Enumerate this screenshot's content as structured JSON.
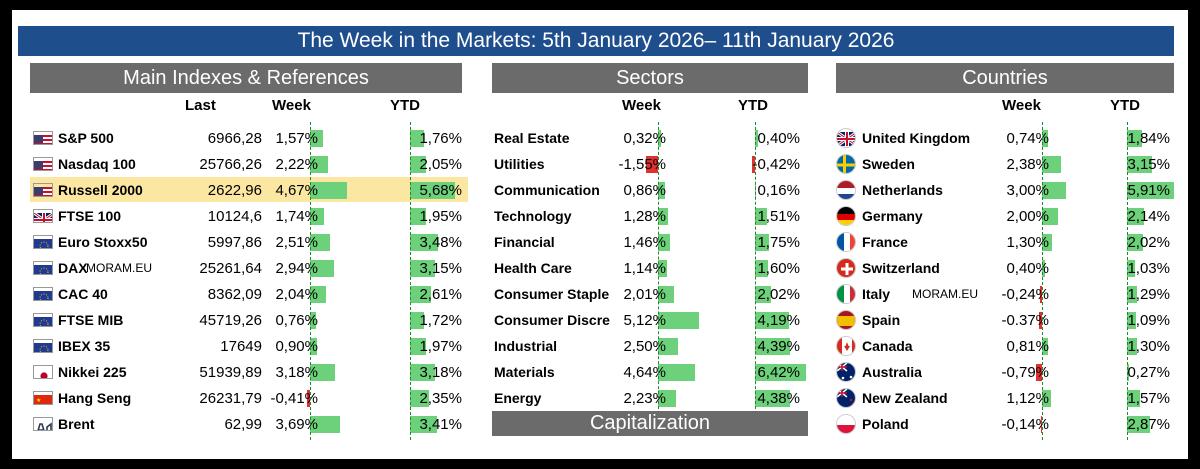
{
  "header": {
    "title": "The Week in the Markets: 5th January 2026– 11th January 2026"
  },
  "colors": {
    "title_bg": "#1f4e8c",
    "panel_bg": "#6b6b6b",
    "bar_green": "#6cd17a",
    "bar_red": "#e03030",
    "highlight": "#fbe7a1"
  },
  "indexes": {
    "title": "Main Indexes & References",
    "col_last": "Last",
    "col_week": "Week",
    "col_ytd": "YTD",
    "rows": [
      {
        "name": "S&P 500",
        "flag": "us",
        "last": "6966,28",
        "week": "1,57%",
        "week_v": 1.57,
        "ytd": "1,76%",
        "ytd_v": 1.76
      },
      {
        "name": "Nasdaq 100",
        "flag": "us",
        "last": "25766,26",
        "week": "2,22%",
        "week_v": 2.22,
        "ytd": "2,05%",
        "ytd_v": 2.05
      },
      {
        "name": "Russell 2000",
        "flag": "us",
        "last": "2622,96",
        "week": "4,67%",
        "week_v": 4.67,
        "ytd": "5,68%",
        "ytd_v": 5.68,
        "highlight": true
      },
      {
        "name": "FTSE 100",
        "flag": "uk",
        "last": "10124,6",
        "week": "1,74%",
        "week_v": 1.74,
        "ytd": "1,95%",
        "ytd_v": 1.95
      },
      {
        "name": "Euro Stoxx50",
        "flag": "eu",
        "last": "5997,86",
        "week": "2,51%",
        "week_v": 2.51,
        "ytd": "3,48%",
        "ytd_v": 3.48
      },
      {
        "name": "DAX",
        "watermark": "MORAM.EU",
        "flag": "eu",
        "last": "25261,64",
        "week": "2,94%",
        "week_v": 2.94,
        "ytd": "3,15%",
        "ytd_v": 3.15
      },
      {
        "name": "CAC 40",
        "flag": "eu",
        "last": "8362,09",
        "week": "2,04%",
        "week_v": 2.04,
        "ytd": "2,61%",
        "ytd_v": 2.61
      },
      {
        "name": "FTSE MIB",
        "flag": "eu",
        "last": "45719,26",
        "week": "0,76%",
        "week_v": 0.76,
        "ytd": "1,72%",
        "ytd_v": 1.72
      },
      {
        "name": "IBEX 35",
        "flag": "eu",
        "last": "17649",
        "week": "0,90%",
        "week_v": 0.9,
        "ytd": "1,97%",
        "ytd_v": 1.97
      },
      {
        "name": "Nikkei 225",
        "flag": "jp",
        "last": "51939,89",
        "week": "3,18%",
        "week_v": 3.18,
        "ytd": "3,18%",
        "ytd_v": 3.18
      },
      {
        "name": "Hang Seng",
        "flag": "cn",
        "last": "26231,79",
        "week": "-0,41%",
        "week_v": -0.41,
        "ytd": "2,35%",
        "ytd_v": 2.35
      },
      {
        "name": "Brent",
        "flag": "oil",
        "last": "62,99",
        "week": "3,69%",
        "week_v": 3.69,
        "ytd": "3,41%",
        "ytd_v": 3.41
      }
    ]
  },
  "sectors": {
    "title": "Sectors",
    "col_week": "Week",
    "col_ytd": "YTD",
    "rows": [
      {
        "name": "Real Estate",
        "week": "0,32%",
        "week_v": 0.32,
        "ytd": "0,40%",
        "ytd_v": 0.4
      },
      {
        "name": "Utilities",
        "week": "-1,55%",
        "week_v": -1.55,
        "ytd": "-0,42%",
        "ytd_v": -0.42
      },
      {
        "name": "Communication",
        "week": "0,86%",
        "week_v": 0.86,
        "ytd": "0,16%",
        "ytd_v": 0.16
      },
      {
        "name": "Technology",
        "week": "1,28%",
        "week_v": 1.28,
        "ytd": "1,51%",
        "ytd_v": 1.51
      },
      {
        "name": "Financial",
        "week": "1,46%",
        "week_v": 1.46,
        "ytd": "1,75%",
        "ytd_v": 1.75
      },
      {
        "name": "Health Care",
        "week": "1,14%",
        "week_v": 1.14,
        "ytd": "1,60%",
        "ytd_v": 1.6
      },
      {
        "name": "Consumer Staple",
        "week": "2,01%",
        "week_v": 2.01,
        "ytd": "2,02%",
        "ytd_v": 2.02
      },
      {
        "name": "Consumer Discre",
        "week": "5,12%",
        "week_v": 5.12,
        "ytd": "4,19%",
        "ytd_v": 4.19
      },
      {
        "name": "Industrial",
        "week": "2,50%",
        "week_v": 2.5,
        "ytd": "4,39%",
        "ytd_v": 4.39
      },
      {
        "name": "Materials",
        "week": "4,64%",
        "week_v": 4.64,
        "ytd": "6,42%",
        "ytd_v": 6.42
      },
      {
        "name": "Energy",
        "week": "2,23%",
        "week_v": 2.23,
        "ytd": "4,38%",
        "ytd_v": 4.38
      }
    ],
    "capitalization_title": "Capitalization"
  },
  "countries": {
    "title": "Countries",
    "col_week": "Week",
    "col_ytd": "YTD",
    "rows": [
      {
        "name": "United Kingdom",
        "flag": "uk",
        "week": "0,74%",
        "week_v": 0.74,
        "ytd": "1,84%",
        "ytd_v": 1.84
      },
      {
        "name": "Sweden",
        "flag": "se",
        "week": "2,38%",
        "week_v": 2.38,
        "ytd": "3,15%",
        "ytd_v": 3.15
      },
      {
        "name": "Netherlands",
        "flag": "nl",
        "week": "3,00%",
        "week_v": 3.0,
        "ytd": "5,91%",
        "ytd_v": 5.91
      },
      {
        "name": "Germany",
        "flag": "de",
        "week": "2,00%",
        "week_v": 2.0,
        "ytd": "2,14%",
        "ytd_v": 2.14
      },
      {
        "name": "France",
        "flag": "fr",
        "week": "1,30%",
        "week_v": 1.3,
        "ytd": "2,02%",
        "ytd_v": 2.02
      },
      {
        "name": "Switzerland",
        "flag": "ch",
        "week": "0,40%",
        "week_v": 0.4,
        "ytd": "1,03%",
        "ytd_v": 1.03
      },
      {
        "name": "Italy",
        "watermark": "MORAM.EU",
        "flag": "it",
        "week": "-0,24%",
        "week_v": -0.24,
        "ytd": "1,29%",
        "ytd_v": 1.29
      },
      {
        "name": "Spain",
        "flag": "es",
        "week": "-0.37%",
        "week_v": -0.37,
        "ytd": "1,09%",
        "ytd_v": 1.09
      },
      {
        "name": "Canada",
        "flag": "ca",
        "week": "0,81%",
        "week_v": 0.81,
        "ytd": "1,30%",
        "ytd_v": 1.3
      },
      {
        "name": "Australia",
        "flag": "au",
        "week": "-0,79%",
        "week_v": -0.79,
        "ytd": "0,27%",
        "ytd_v": 0.27
      },
      {
        "name": "New Zealand",
        "flag": "nz",
        "week": "1,12%",
        "week_v": 1.12,
        "ytd": "1,57%",
        "ytd_v": 1.57
      },
      {
        "name": "Poland",
        "flag": "pl",
        "week": "-0,14%",
        "week_v": -0.14,
        "ytd": "2,87%",
        "ytd_v": 2.87
      }
    ]
  }
}
